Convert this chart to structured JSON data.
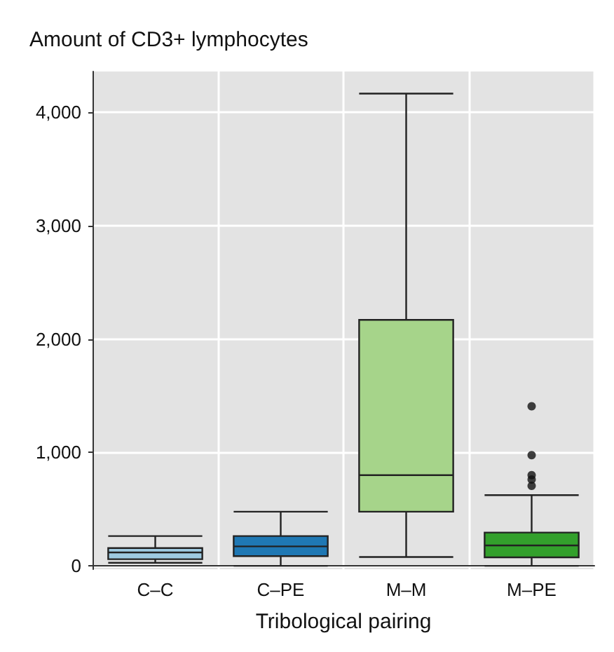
{
  "chart_data": {
    "type": "box",
    "title": "Amount of CD3+ lymphocytes",
    "xlabel": "Tribological pairing",
    "categories": [
      "C–C",
      "C–PE",
      "M–M",
      "M–PE"
    ],
    "colors": [
      "#9ecae1",
      "#1f78b4",
      "#a6d48a",
      "#33a02c"
    ],
    "boxes": [
      {
        "low": 27,
        "q1": 59,
        "median": 118,
        "q3": 157,
        "high": 263
      },
      {
        "low": 0,
        "q1": 86,
        "median": 172,
        "q3": 263,
        "high": 478
      },
      {
        "low": 78,
        "q1": 478,
        "median": 800,
        "q3": 2170,
        "high": 4165
      },
      {
        "low": 0,
        "q1": 75,
        "median": 180,
        "q3": 294,
        "high": 624,
        "outliers": [
          706,
          761,
          800,
          976,
          1408
        ]
      }
    ],
    "ylim": [
      -30,
      4360
    ],
    "yticks": [
      {
        "value": 0,
        "label": "0"
      },
      {
        "value": 1000,
        "label": "1,000"
      },
      {
        "value": 2000,
        "label": "2,000"
      },
      {
        "value": 3000,
        "label": "3,000"
      },
      {
        "value": 4000,
        "label": "4,000"
      }
    ],
    "grid": true
  }
}
